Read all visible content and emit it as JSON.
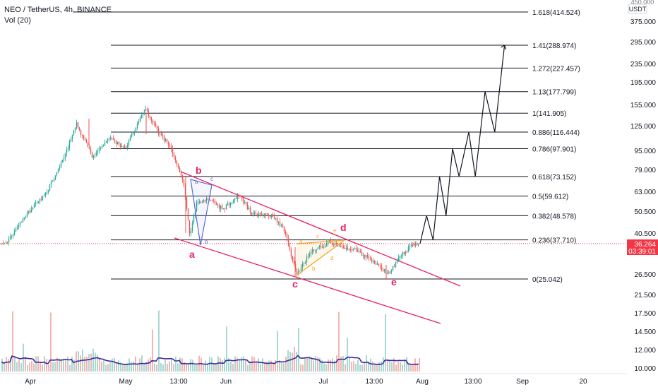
{
  "header": {
    "title": "NEO / TetherUS, 4h, BINANCE",
    "indicator": "Vol (20)"
  },
  "price_axis": {
    "currency": "USDT",
    "top_partial": "450.000",
    "ticks": [
      "375.000",
      "295.000",
      "235.000",
      "195.000",
      "155.000",
      "125.000",
      "95.000",
      "79.000",
      "63.000",
      "50.500",
      "40.500",
      "26.500",
      "21.500",
      "17.500",
      "14.500",
      "12.000",
      "10.000"
    ],
    "last_price": "36.264",
    "countdown": "03:39:01"
  },
  "time_axis": {
    "labels": [
      "Apr",
      "May",
      "13:00",
      "Jun",
      "Jul",
      "13:00",
      "Aug",
      "13:00",
      "Sep",
      "20"
    ]
  },
  "colors": {
    "fib_line": "#131722",
    "channel": "#e91e63",
    "wave_blue": "#5b6bd6",
    "wave_orange": "#f5a623",
    "last_price": "#f23645",
    "candle_up": "#26a69a",
    "candle_down": "#ef5350",
    "vol_ma": "#3f2b96"
  },
  "chart_data": {
    "type": "candlestick",
    "symbol": "NEO / TetherUS",
    "timeframe": "4h",
    "exchange": "BINANCE",
    "scale": "log",
    "last_price": 36.264,
    "fib_levels": [
      {
        "ratio": "1.618",
        "price": 414.524,
        "label": "1.618(414.524)"
      },
      {
        "ratio": "1.41",
        "price": 288.974,
        "label": "1.41(288.974)"
      },
      {
        "ratio": "1.272",
        "price": 227.457,
        "label": "1.272(227.457)"
      },
      {
        "ratio": "1.13",
        "price": 177.799,
        "label": "1.13(177.799)"
      },
      {
        "ratio": "1",
        "price": 141.905,
        "label": "1(141.905)"
      },
      {
        "ratio": "0.886",
        "price": 116.444,
        "label": "0.886(116.444)"
      },
      {
        "ratio": "0.786",
        "price": 97.901,
        "label": "0.786(97.901)"
      },
      {
        "ratio": "0.618",
        "price": 73.152,
        "label": "0.618(73.152)"
      },
      {
        "ratio": "0.5",
        "price": 59.612,
        "label": "0.5(59.612)"
      },
      {
        "ratio": "0.382",
        "price": 48.578,
        "label": "0.382(48.578)"
      },
      {
        "ratio": "0.236",
        "price": 37.71,
        "label": "0.236(37.710)"
      },
      {
        "ratio": "0",
        "price": 25.042,
        "label": "0(25.042)"
      }
    ],
    "wave_labels": {
      "main": [
        "a",
        "b",
        "c",
        "d",
        "e"
      ],
      "blue": [
        "a",
        "b",
        "c"
      ],
      "orange": [
        "a",
        "b",
        "c",
        "d",
        "e"
      ]
    },
    "price_path": [
      {
        "date": "Mar 24",
        "price": 36
      },
      {
        "date": "Mar 30",
        "price": 48
      },
      {
        "date": "Apr 06",
        "price": 62
      },
      {
        "date": "Apr 12",
        "price": 95
      },
      {
        "date": "Apr 15",
        "price": 128
      },
      {
        "date": "Apr 20",
        "price": 90
      },
      {
        "date": "Apr 25",
        "price": 110
      },
      {
        "date": "Apr 30",
        "price": 98
      },
      {
        "date": "May 03",
        "price": 118
      },
      {
        "date": "May 06",
        "price": 150
      },
      {
        "date": "May 10",
        "price": 118
      },
      {
        "date": "May 14",
        "price": 100
      },
      {
        "date": "May 18",
        "price": 70
      },
      {
        "date": "May 20",
        "price": 40
      },
      {
        "date": "May 22",
        "price": 55
      },
      {
        "date": "May 26",
        "price": 58
      },
      {
        "date": "May 30",
        "price": 52
      },
      {
        "date": "Jun 04",
        "price": 60
      },
      {
        "date": "Jun 08",
        "price": 50
      },
      {
        "date": "Jun 14",
        "price": 49
      },
      {
        "date": "Jun 18",
        "price": 42
      },
      {
        "date": "Jun 22",
        "price": 26
      },
      {
        "date": "Jun 26",
        "price": 33
      },
      {
        "date": "Jul 02",
        "price": 37
      },
      {
        "date": "Jul 06",
        "price": 35
      },
      {
        "date": "Jul 10",
        "price": 34
      },
      {
        "date": "Jul 16",
        "price": 30
      },
      {
        "date": "Jul 20",
        "price": 26
      },
      {
        "date": "Jul 24",
        "price": 32
      },
      {
        "date": "Jul 28",
        "price": 36
      }
    ],
    "projection": [
      {
        "date": "Jul 30",
        "price": 36.264
      },
      {
        "date": "Aug 01",
        "price": 48.578
      },
      {
        "date": "Aug 03",
        "price": 37.71
      },
      {
        "date": "Aug 05",
        "price": 73.152
      },
      {
        "date": "Aug 07",
        "price": 48.578
      },
      {
        "date": "Aug 09",
        "price": 97.901
      },
      {
        "date": "Aug 11",
        "price": 73.152
      },
      {
        "date": "Aug 14",
        "price": 116.444
      },
      {
        "date": "Aug 16",
        "price": 73.152
      },
      {
        "date": "Aug 19",
        "price": 177.799
      },
      {
        "date": "Aug 22",
        "price": 116.444
      },
      {
        "date": "Aug 25",
        "price": 288.974
      }
    ]
  }
}
